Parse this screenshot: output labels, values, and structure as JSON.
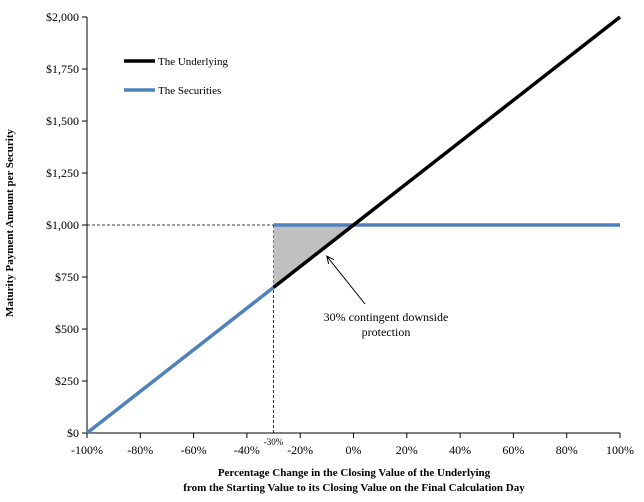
{
  "chart_data": {
    "type": "line",
    "xlabel_lines": [
      "Percentage Change in the Closing Value of the Underlying",
      "from the Starting Value to its Closing Value on the Final Calculation Day"
    ],
    "ylabel": "Maturity Payment Amount per Security",
    "xlim": [
      -100,
      100
    ],
    "ylim": [
      0,
      2000
    ],
    "x_ticks": [
      -100,
      -80,
      -60,
      -40,
      -20,
      0,
      20,
      40,
      60,
      80,
      100
    ],
    "x_tick_labels": [
      "-100%",
      "-80%",
      "-60%",
      "-40%",
      "-20%",
      "0%",
      "20%",
      "40%",
      "60%",
      "80%",
      "100%"
    ],
    "y_ticks": [
      0,
      250,
      500,
      750,
      1000,
      1250,
      1500,
      1750,
      2000
    ],
    "y_tick_labels": [
      "$0",
      "$250",
      "$500",
      "$750",
      "$1,000",
      "$1,250",
      "$1,500",
      "$1,750",
      "$2,000"
    ],
    "series": [
      {
        "name": "The Underlying",
        "color": "#000000",
        "points": [
          [
            -30,
            700
          ],
          [
            100,
            2000
          ]
        ]
      },
      {
        "name": "The Securities",
        "color": "#4f81bd",
        "segments": [
          [
            [
              -100,
              0
            ],
            [
              -30,
              700
            ]
          ],
          [
            [
              -30,
              1000
            ],
            [
              100,
              1000
            ]
          ]
        ]
      }
    ],
    "legend": {
      "placement": "top-left",
      "entries": [
        "The Underlying",
        "The Securities"
      ]
    },
    "shaded_region": {
      "points": [
        [
          -30,
          700
        ],
        [
          -30,
          1000
        ],
        [
          0,
          1000
        ]
      ],
      "color": "#c0c0c0"
    },
    "reference_lines": {
      "y": 1000,
      "x": -30
    },
    "marker_label": "-30%",
    "annotation": {
      "lines": [
        "30% contingent downside",
        "protection"
      ],
      "arrow_target": [
        -10,
        850
      ]
    }
  }
}
